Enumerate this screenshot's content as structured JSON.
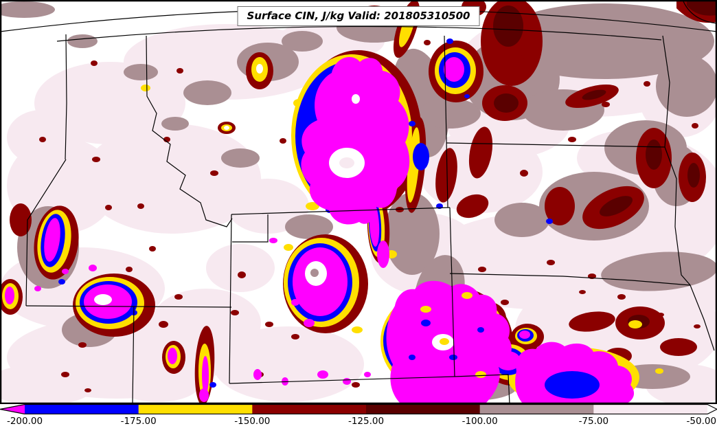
{
  "title": {
    "text": "Surface CIN, J/kg Valid: 201805310500"
  },
  "colorbar": {
    "tick_labels": [
      "-200.00",
      "-175.00",
      "-150.00",
      "-125.00",
      "-100.00",
      "-75.00",
      "-50.00"
    ],
    "tick_values": [
      -200,
      -175,
      -150,
      -125,
      -100,
      -75,
      -50
    ],
    "units": "J/kg",
    "segment_colors": [
      "#0000FF",
      "#FFDF00",
      "#8B0000",
      "#5A0000",
      "#AA8F93",
      "#F7E9F0"
    ],
    "under_arrow_color": "#FF00FF",
    "over_arrow_color": "#FFFFFF"
  },
  "palette": {
    "magenta": "#FF00FF",
    "blue": "#0000FF",
    "yellow": "#FFDF00",
    "dark_red": "#8B0000",
    "maroon": "#5A0000",
    "rosy_gray": "#AA8F93",
    "pale_pink": "#F7E9F0",
    "map_background": "#FFFFFF",
    "line_color": "#000000"
  },
  "chart_data": {
    "type": "heatmap",
    "title": "Surface CIN, J/kg Valid: 201805310500",
    "field": "Surface CIN",
    "units": "J/kg",
    "valid_time": "201805310500",
    "levels": [
      -200,
      -175,
      -150,
      -125,
      -100,
      -75,
      -50
    ],
    "level_colors_low_to_high": [
      "#FF00FF",
      "#0000FF",
      "#FFDF00",
      "#8B0000",
      "#5A0000",
      "#AA8F93",
      "#F7E9F0",
      "#FFFFFF"
    ],
    "legend_position": "bottom"
  }
}
